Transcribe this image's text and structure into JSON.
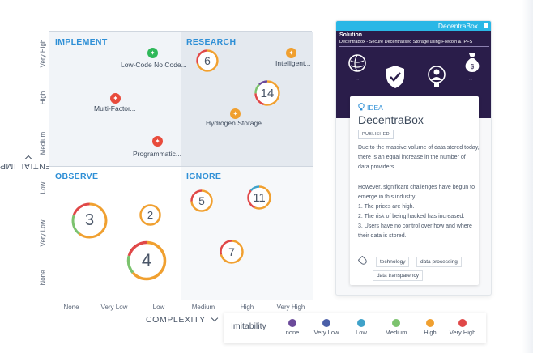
{
  "axes": {
    "y_label": "POTENTIAL IMPACT",
    "y_ticks": [
      "Very High",
      "High",
      "Medium",
      "Low",
      "Very Low",
      "None"
    ],
    "x_label": "COMPLEXITY",
    "x_ticks": [
      "None",
      "Very Low",
      "Low",
      "Medium",
      "High",
      "Very High"
    ]
  },
  "quadrants": {
    "top_left": "IMPLEMENT",
    "top_right": "RESEARCH",
    "bottom_left": "OBSERVE",
    "bottom_right": "IGNORE"
  },
  "pins": [
    {
      "label": "Low-Code No Code...",
      "color": "#2fb85a"
    },
    {
      "label": "Multi-Factor...",
      "color": "#e84b3c"
    },
    {
      "label": "Programmatic...",
      "color": "#e84b3c"
    },
    {
      "label": "Intelligent...",
      "color": "#f0a030"
    },
    {
      "label": "Hydrogen Storage",
      "color": "#f0a030"
    }
  ],
  "bubbles": [
    {
      "count": "6"
    },
    {
      "count": "14"
    },
    {
      "count": "3"
    },
    {
      "count": "2"
    },
    {
      "count": "4"
    },
    {
      "count": "5"
    },
    {
      "count": "11"
    },
    {
      "count": "7"
    }
  ],
  "legend": {
    "title": "Imitability",
    "items": [
      {
        "label": "none",
        "color": "#6b4a9a"
      },
      {
        "label": "Very Low",
        "color": "#4a5fa8"
      },
      {
        "label": "Low",
        "color": "#3fa2c9"
      },
      {
        "label": "Medium",
        "color": "#7cc36e"
      },
      {
        "label": "High",
        "color": "#f0a030"
      },
      {
        "label": "Very High",
        "color": "#e04848"
      }
    ]
  },
  "panel": {
    "window_title": "DecentraBox",
    "banner_heading": "Solution",
    "banner_subtitle": "DecentraBox - Secure Decentralised Storage using Filecoin & IPFS",
    "type": "IDEA",
    "title": "DecentraBox",
    "status": "PUBLISHED",
    "description": [
      "Due to the massive volume of data stored today,",
      "there is an equal increase in the number of",
      "data providers.",
      "",
      "However, significant challenges have begun to",
      "emerge in this industry:",
      "1. The prices are high.",
      "2. The risk of being hacked has increased.",
      "3. Users have no control over how and where",
      "their data is stored."
    ],
    "tags": [
      "technology",
      "data processing",
      "data transparency"
    ]
  },
  "colors": {
    "accent": "#2e8fd6",
    "banner_bg": "#2a1d4a",
    "bar": "#2ab7e6"
  }
}
